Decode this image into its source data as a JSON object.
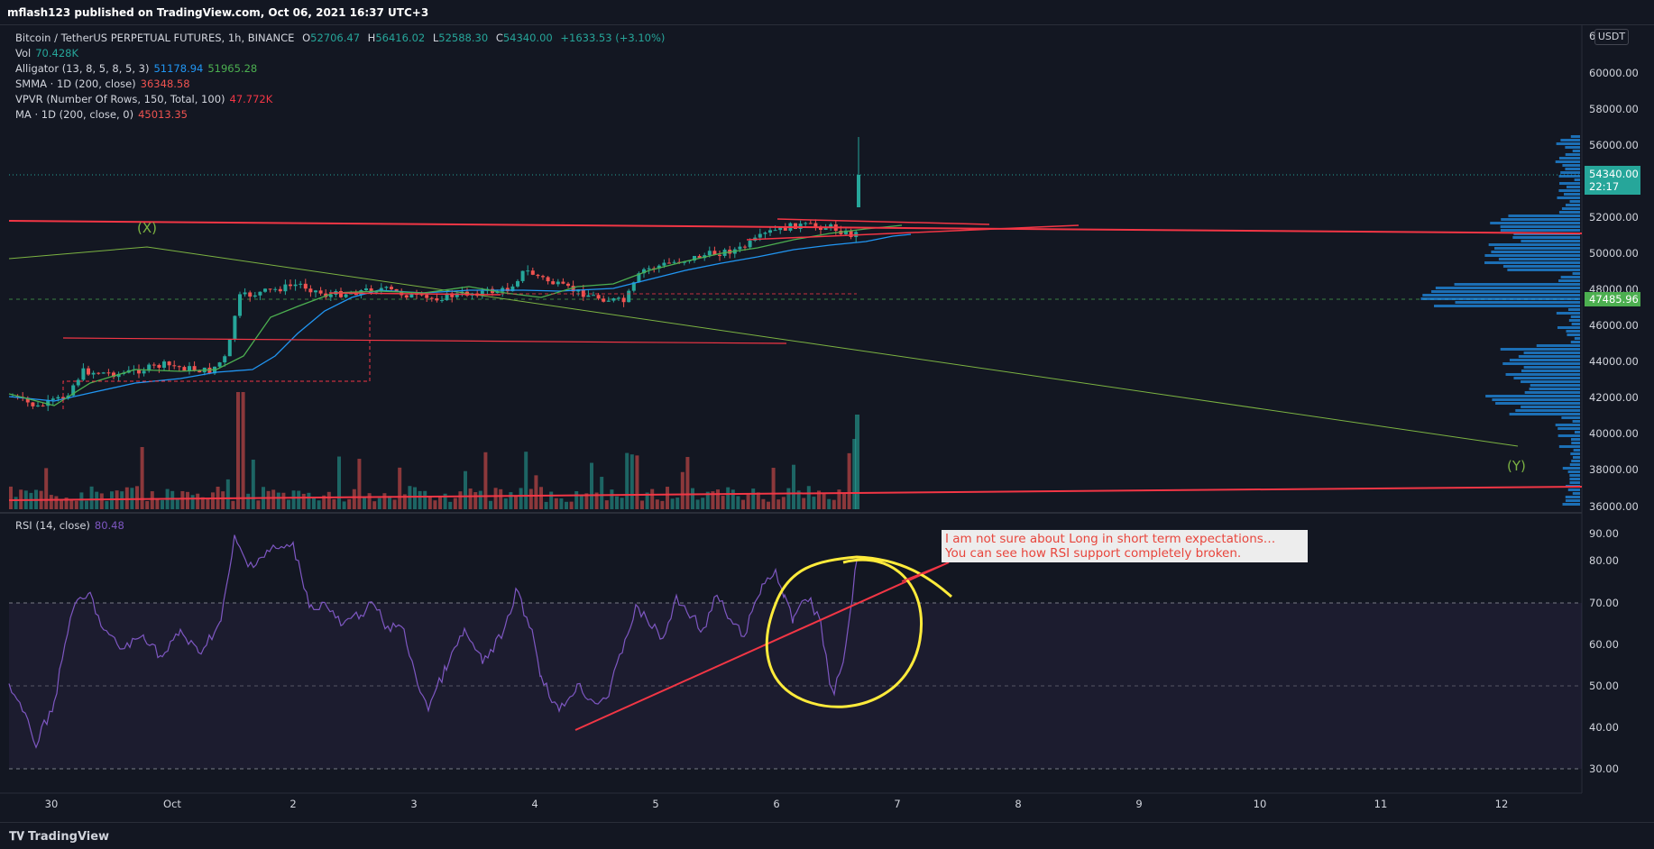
{
  "header": {
    "published": "mflash123 published on TradingView.com, Oct 06, 2021 16:37 UTC+3"
  },
  "legend": {
    "symbol": "Bitcoin / TetherUS PERPETUAL FUTURES, 1h, BINANCE",
    "ohlc": {
      "o_label": "O",
      "o": "52706.47",
      "h_label": "H",
      "h": "56416.02",
      "l_label": "L",
      "l": "52588.30",
      "c_label": "C",
      "c": "54340.00",
      "change": "+1633.53 (+3.10%)"
    },
    "vol": {
      "label": "Vol",
      "value": "70.428K"
    },
    "alligator": {
      "label": "Alligator (13, 8, 5, 8, 5, 3)",
      "v1": "51178.94",
      "v2": "51965.28"
    },
    "smma": {
      "label": "SMMA · 1D (200, close)",
      "value": "36348.58"
    },
    "vpvr": {
      "label": "VPVR (Number Of Rows, 150, Total, 100)",
      "value": "47.772K"
    },
    "ma": {
      "label": "MA · 1D (200, close, 0)",
      "value": "45013.35"
    },
    "rsi": {
      "label": "RSI (14, close)",
      "value": "80.48"
    }
  },
  "price_axis": {
    "currency": "USDT",
    "ticks": [
      "60000.00",
      "58000.00",
      "56000.00",
      "52000.00",
      "50000.00",
      "48000.00",
      "46000.00",
      "44000.00",
      "42000.00",
      "40000.00",
      "38000.00",
      "36000.00"
    ],
    "top_cut": "6",
    "last_price": "54340.00",
    "countdown": "22:17",
    "poc_price": "47485.96"
  },
  "rsi_axis": {
    "ticks": [
      "90.00",
      "80.00",
      "70.00",
      "60.00",
      "50.00",
      "40.00",
      "30.00"
    ]
  },
  "time_axis": {
    "ticks": [
      "30",
      "Oct",
      "2",
      "3",
      "4",
      "5",
      "6",
      "7",
      "8",
      "9",
      "10",
      "11",
      "12"
    ]
  },
  "drawings": {
    "wave_x": "(X)",
    "wave_y": "(Y)",
    "note_line1": "I am not sure about Long in short term expectations…",
    "note_line2": "You can see how RSI support completely broken."
  },
  "footer": {
    "brand": "TradingView"
  },
  "colors": {
    "bg": "#131722",
    "up": "#26a69a",
    "down": "#ef5350",
    "rsi": "#7e57c2",
    "alligator_blue": "#2196f3",
    "alligator_green": "#4caf50",
    "trend_red": "#f23645",
    "annotation_yellow": "#ffeb3b"
  }
}
